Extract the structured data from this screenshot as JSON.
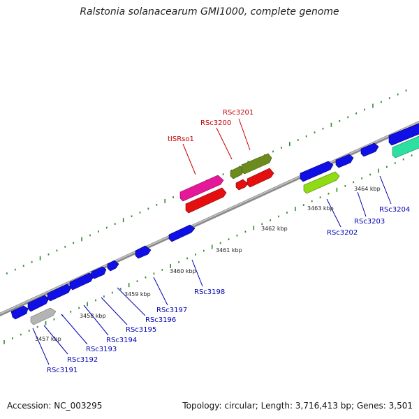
{
  "title": "Ralstonia solanacearum GMI1000, complete genome",
  "footer": {
    "accession": "Accession: NC_003295",
    "topology": "Topology: circular; Length: 3,716,413 bp; Genes: 3,501"
  },
  "colors": {
    "backbone": "#8c8c8c",
    "tick": "#2e8b2e",
    "blue_gene": "#1010e6",
    "red_gene": "#e60f0f",
    "pink_gene": "#e6189a",
    "olive_gene": "#6b8c1c",
    "lime_gene": "#8fdc14",
    "teal_gene": "#2de0a0",
    "gray_gene": "#b4b4b4",
    "blue_label": "#0000b4",
    "red_label": "#c80000"
  },
  "kbp_labels": [
    "3457 kbp",
    "3458 kbp",
    "3459 kbp",
    "3460 kbp",
    "3461 kbp",
    "3462 kbp",
    "3463 kbp",
    "3464 kbp"
  ],
  "gene_labels": [
    "RSc3191",
    "RSc3192",
    "RSc3193",
    "RSc3194",
    "RSc3195",
    "RSc3196",
    "RSc3197",
    "RSc3198",
    "RSc3202",
    "RSc3203",
    "RSc3204",
    "tISRso1",
    "RSc3200",
    "RSc3201"
  ]
}
